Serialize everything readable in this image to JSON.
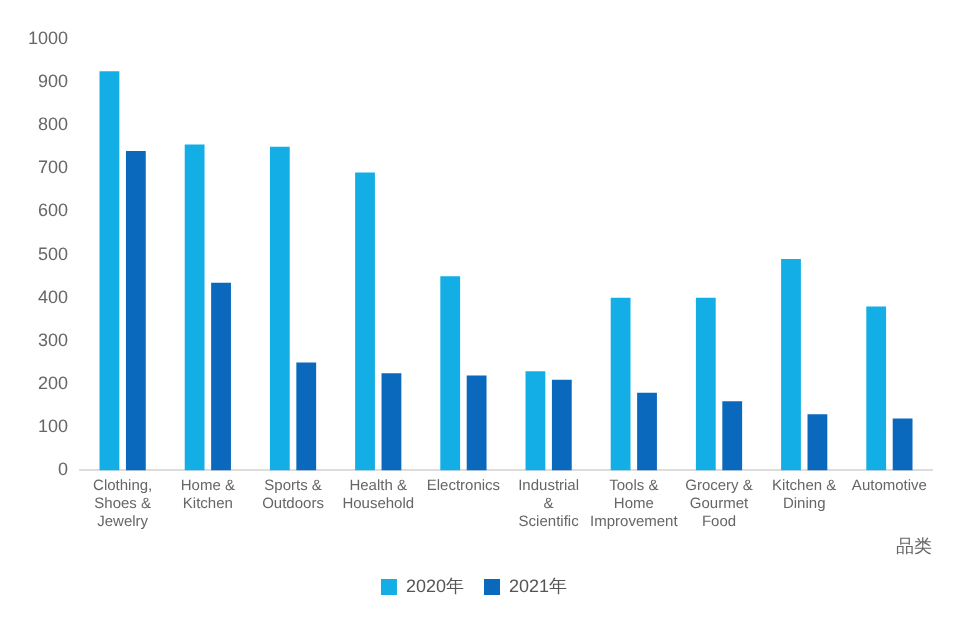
{
  "chart_data": {
    "type": "bar",
    "xlabel": "品类",
    "categories": [
      "Clothing, Shoes & Jewelry",
      "Home & Kitchen",
      "Sports & Outdoors",
      "Health & Household",
      "Electronics",
      "Industrial & Scientific",
      "Tools & Home Improvement",
      "Grocery & Gourmet Food",
      "Kitchen & Dining",
      "Automotive"
    ],
    "series": [
      {
        "name": "2020年",
        "color": "#14aee6",
        "values": [
          925,
          755,
          750,
          690,
          450,
          230,
          400,
          400,
          490,
          380
        ]
      },
      {
        "name": "2021年",
        "color": "#0b69bd",
        "values": [
          740,
          435,
          250,
          225,
          220,
          210,
          180,
          160,
          130,
          120
        ]
      }
    ],
    "ylim": [
      0,
      1000
    ],
    "yticks": [
      0,
      100,
      200,
      300,
      400,
      500,
      600,
      700,
      800,
      900,
      1000
    ],
    "grid": false,
    "legend": "bottom"
  }
}
